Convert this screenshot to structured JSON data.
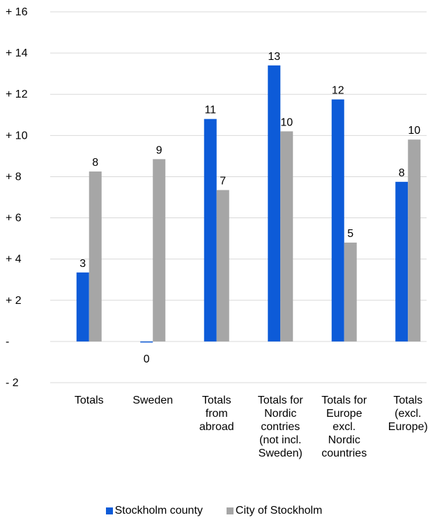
{
  "chart_data": {
    "type": "bar",
    "categories": [
      [
        "Totals"
      ],
      [
        "Sweden"
      ],
      [
        "Totals",
        "from",
        "abroad"
      ],
      [
        "Totals for",
        "Nordic",
        "contries",
        "(not incl.",
        "Sweden)"
      ],
      [
        "Totals for",
        "Europe",
        "excl.",
        "Nordic",
        "countries"
      ],
      [
        "Totals",
        "(excl.",
        "Europe)"
      ]
    ],
    "series": [
      {
        "name": "Stockholm county",
        "color": "#0d5bd8",
        "values": [
          3.35,
          -0.05,
          10.8,
          13.4,
          11.75,
          7.75
        ],
        "labels": [
          "3",
          "0",
          "11",
          "13",
          "12",
          "8"
        ]
      },
      {
        "name": "City of Stockholm",
        "color": "#a6a6a6",
        "values": [
          8.25,
          8.85,
          7.35,
          10.2,
          4.8,
          9.8
        ],
        "labels": [
          "8",
          "9",
          "7",
          "10",
          "5",
          "10"
        ]
      }
    ],
    "yticks": [
      {
        "value": 16,
        "label": "+ 16"
      },
      {
        "value": 14,
        "label": "+ 14"
      },
      {
        "value": 12,
        "label": "+ 12"
      },
      {
        "value": 10,
        "label": "+ 10"
      },
      {
        "value": 8,
        "label": "+ 8"
      },
      {
        "value": 6,
        "label": "+ 6"
      },
      {
        "value": 4,
        "label": "+ 4"
      },
      {
        "value": 2,
        "label": "+ 2"
      },
      {
        "value": 0,
        "label": "-"
      },
      {
        "value": -2,
        "label": "- 2"
      }
    ],
    "ylim": [
      -2,
      16
    ],
    "grid": true,
    "legend_position": "bottom"
  }
}
